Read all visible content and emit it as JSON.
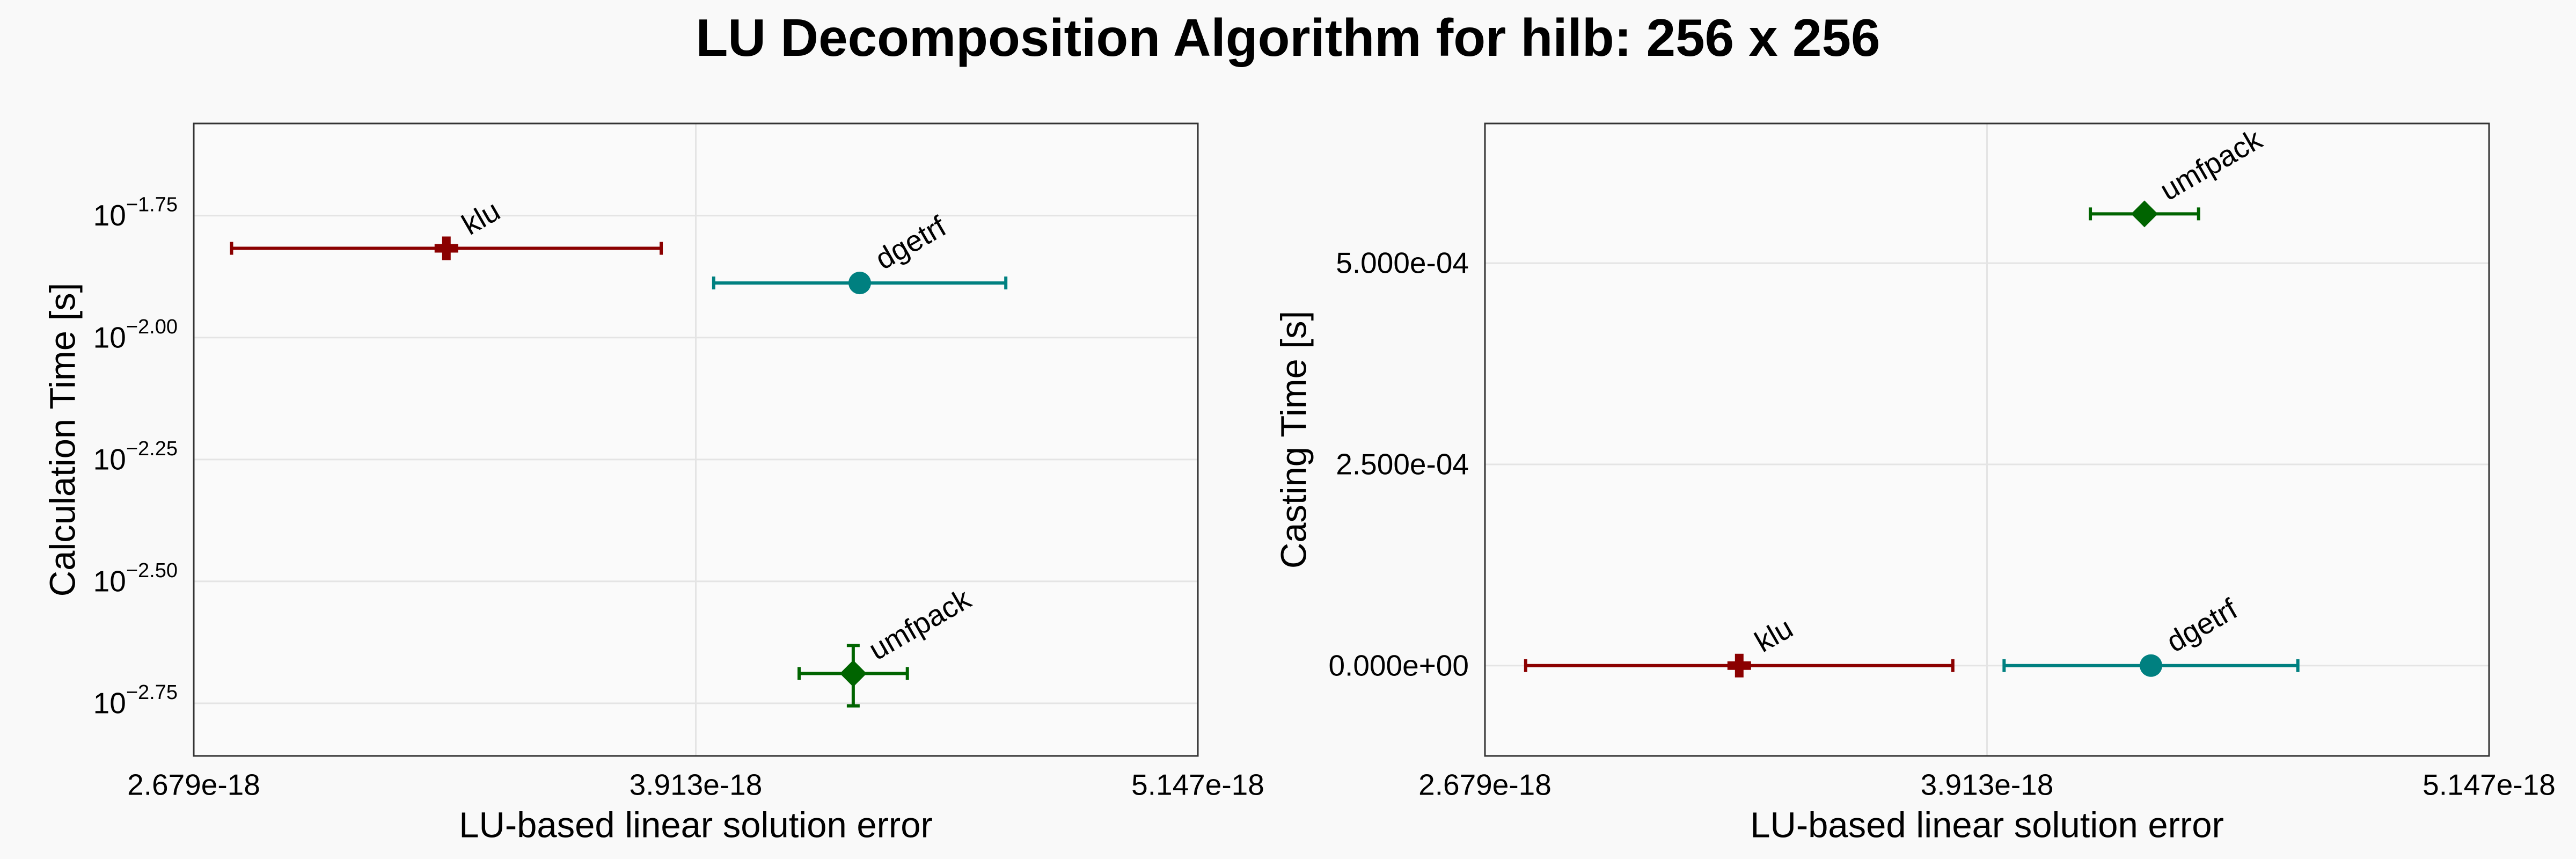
{
  "title": "LU Decomposition Algorithm for hilb: 256 x 256",
  "chart_data": [
    {
      "type": "scatter",
      "xlabel": "LU-based linear solution error",
      "ylabel": "Calculation Time [s]",
      "xlim": [
        2.679e-18,
        5.147e-18
      ],
      "ylim": [
        0.001387,
        0.02748
      ],
      "log_y": true,
      "grid": true,
      "xticks": [
        {
          "value": 2.679e-18,
          "label": "2.679e-18"
        },
        {
          "value": 3.913e-18,
          "label": "3.913e-18"
        },
        {
          "value": 5.147e-18,
          "label": "5.147e-18"
        }
      ],
      "yticks": [
        {
          "value": 0.017783,
          "label": "10",
          "exponent": "−1.75"
        },
        {
          "value": 0.01,
          "label": "10",
          "exponent": "−2.00"
        },
        {
          "value": 0.0056234,
          "label": "10",
          "exponent": "−2.25"
        },
        {
          "value": 0.0031623,
          "label": "10",
          "exponent": "−2.50"
        },
        {
          "value": 0.0017783,
          "label": "10",
          "exponent": "−2.75"
        }
      ],
      "series": [
        {
          "name": "klu",
          "color": "#8b0000",
          "marker": "cross",
          "x": [
            3.3e-18
          ],
          "values": [
            0.01524
          ],
          "xerr": [
            5.28e-19
          ],
          "yerr": [
            0
          ]
        },
        {
          "name": "dgetrf",
          "color": "#008080",
          "marker": "circle",
          "x": [
            4.316e-18
          ],
          "values": [
            0.01294
          ],
          "xerr": [
            3.59e-19
          ],
          "yerr": [
            0
          ]
        },
        {
          "name": "umfpack",
          "color": "#006400",
          "marker": "diamond",
          "x": [
            4.3e-18
          ],
          "values": [
            0.002047
          ],
          "xerr": [
            1.33e-19
          ],
          "yerr": [
            0.00029
          ]
        }
      ]
    },
    {
      "type": "scatter",
      "xlabel": "LU-based linear solution error",
      "ylabel": "Casting Time [s]",
      "xlim": [
        2.679e-18,
        5.147e-18
      ],
      "ylim": [
        -0.0001122,
        0.0006735
      ],
      "log_y": false,
      "grid": true,
      "xticks": [
        {
          "value": 2.679e-18,
          "label": "2.679e-18"
        },
        {
          "value": 3.913e-18,
          "label": "3.913e-18"
        },
        {
          "value": 5.147e-18,
          "label": "5.147e-18"
        }
      ],
      "yticks": [
        {
          "value": 0,
          "label": "0.000e+00"
        },
        {
          "value": 0.00025,
          "label": "2.500e-04"
        },
        {
          "value": 0.0005,
          "label": "5.000e-04"
        }
      ],
      "series": [
        {
          "name": "klu",
          "color": "#8b0000",
          "marker": "cross",
          "x": [
            3.304e-18
          ],
          "values": [
            0
          ],
          "xerr": [
            5.25e-19
          ],
          "yerr": [
            0
          ]
        },
        {
          "name": "dgetrf",
          "color": "#008080",
          "marker": "circle",
          "x": [
            4.316e-18
          ],
          "values": [
            0
          ],
          "xerr": [
            3.61e-19
          ],
          "yerr": [
            0
          ]
        },
        {
          "name": "umfpack",
          "color": "#006400",
          "marker": "diamond",
          "x": [
            4.3e-18
          ],
          "values": [
            0.0005612
          ],
          "xerr": [
            1.33e-19
          ],
          "yerr": [
            0
          ]
        }
      ]
    }
  ]
}
